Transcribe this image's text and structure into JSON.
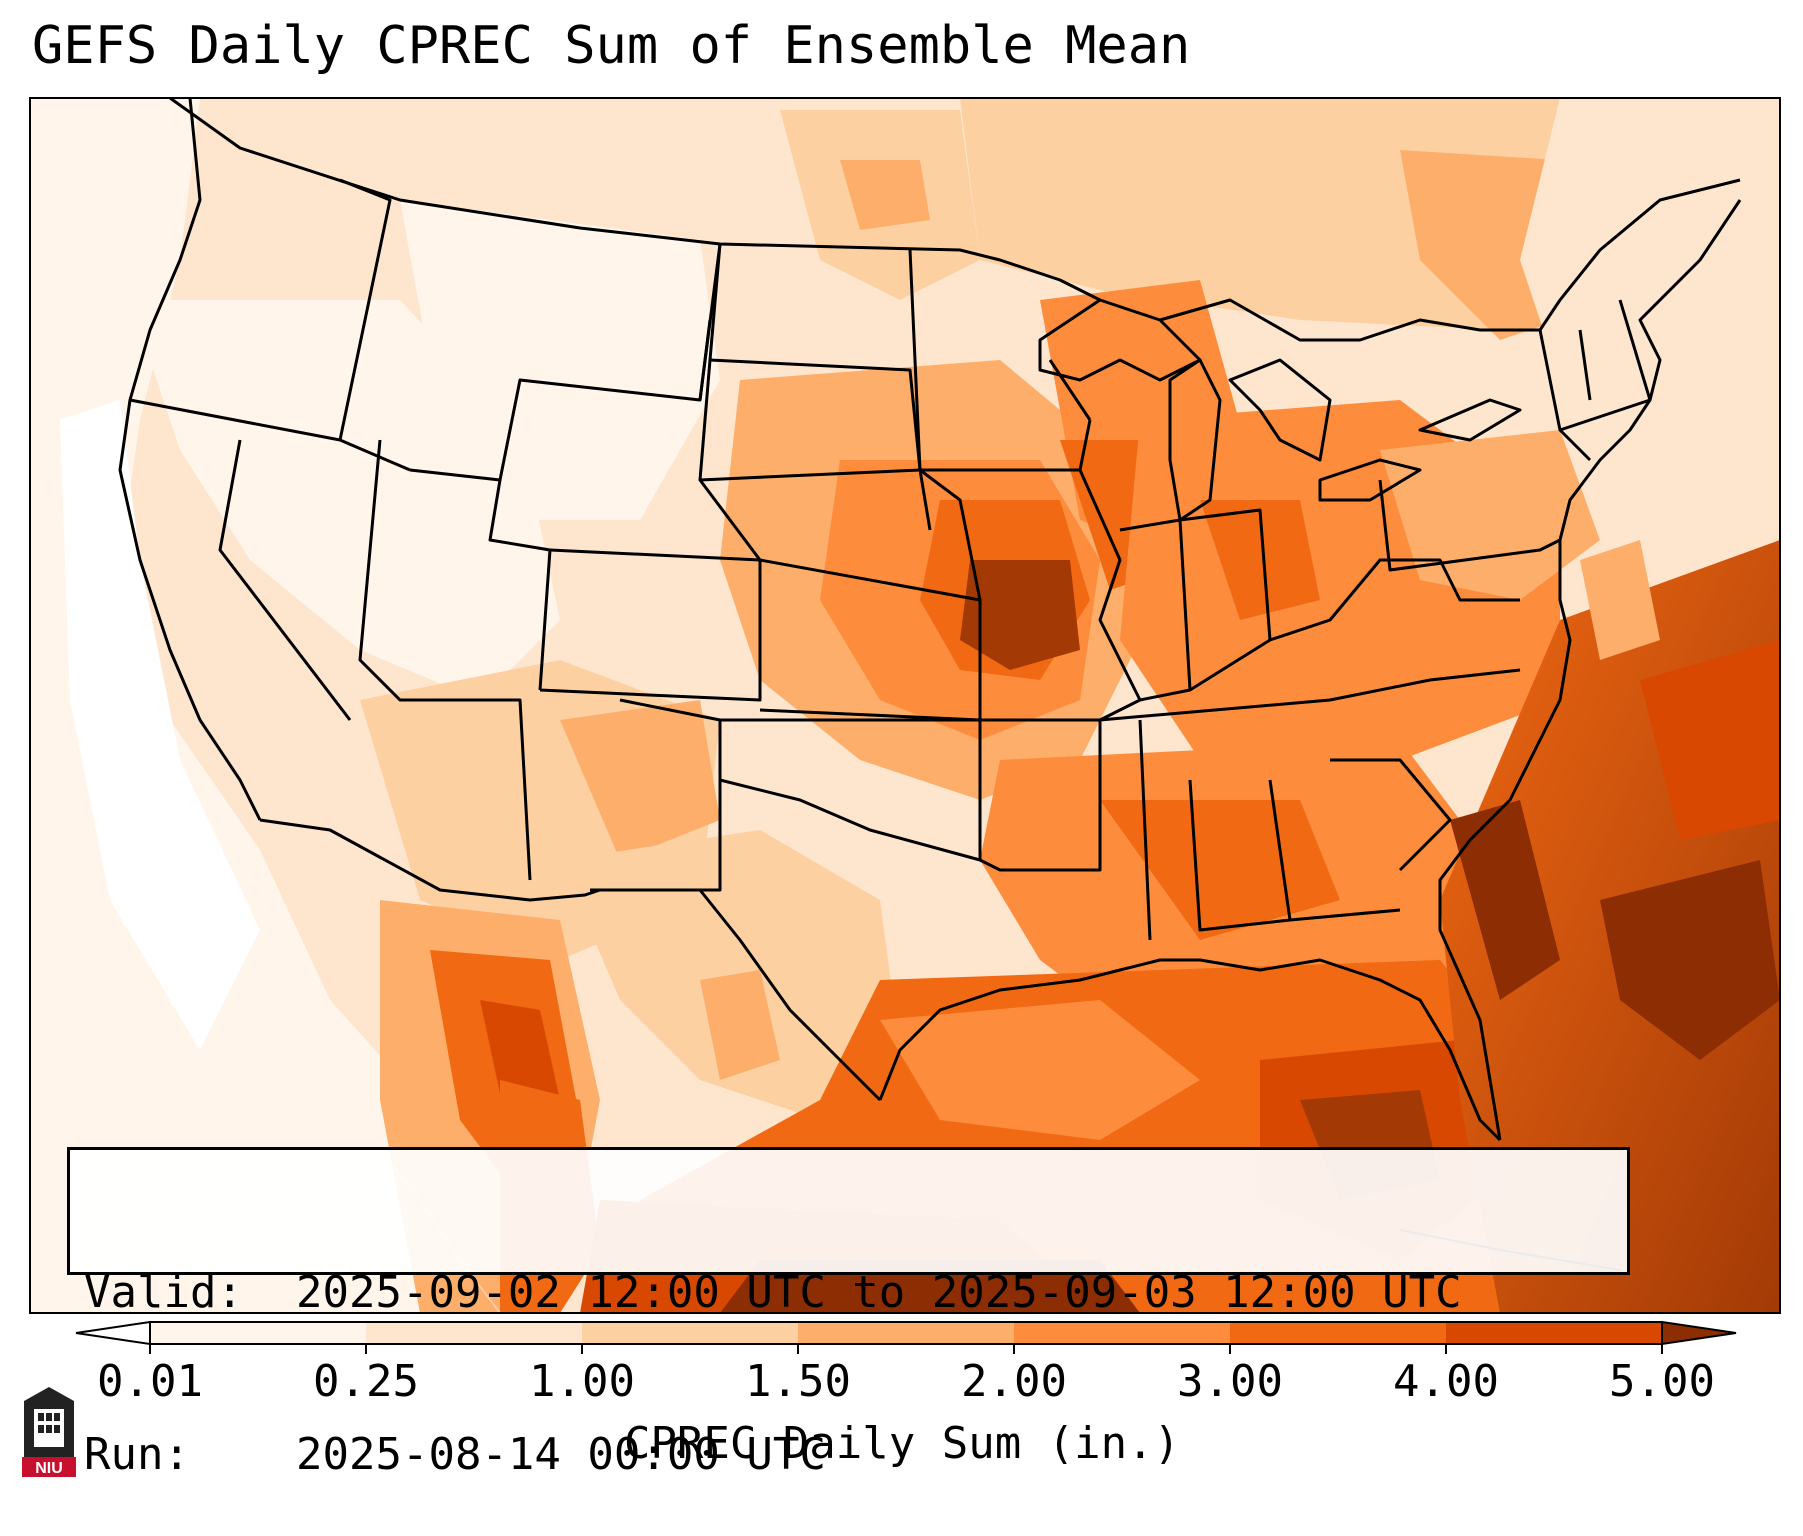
{
  "title": "GEFS Daily CPREC Sum of Ensemble Mean",
  "info": {
    "valid_label": "Valid:",
    "valid_value": "2025-09-02 12:00 UTC to 2025-09-03 12:00 UTC",
    "run_label": "Run:",
    "run_value": "2025-08-14 00:00 UTC"
  },
  "colorbar": {
    "label": "CPREC Daily Sum (in.)",
    "ticks": [
      "0.01",
      "0.25",
      "1.00",
      "1.50",
      "2.00",
      "3.00",
      "4.00",
      "5.00"
    ],
    "bins": [
      {
        "from": "0.01",
        "to": "0.25",
        "color": "#fff5eb"
      },
      {
        "from": "0.25",
        "to": "1.00",
        "color": "#fee6ce"
      },
      {
        "from": "1.00",
        "to": "1.50",
        "color": "#fdd0a2"
      },
      {
        "from": "1.50",
        "to": "2.00",
        "color": "#fdae6b"
      },
      {
        "from": "2.00",
        "to": "3.00",
        "color": "#fd8d3c"
      },
      {
        "from": "3.00",
        "to": "4.00",
        "color": "#f16913"
      },
      {
        "from": "4.00",
        "to": "5.00",
        "color": "#d94801"
      }
    ],
    "under_color": "#ffffff",
    "over_color": "#8c2d04"
  },
  "map": {
    "projection": "Lambert conformal",
    "region": "CONUS",
    "colormap": "Oranges",
    "features": [
      "US state boundaries",
      "coastlines",
      "national borders",
      "Great Lakes"
    ]
  },
  "logo": {
    "text": "NIU",
    "accent_color": "#c8102e"
  }
}
